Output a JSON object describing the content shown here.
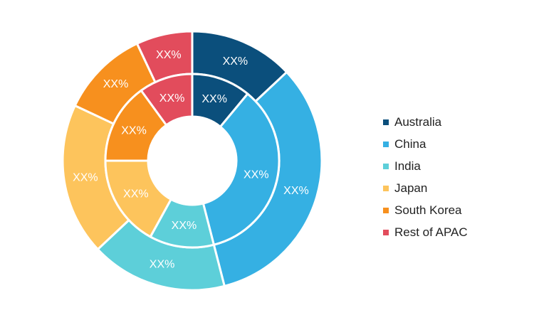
{
  "chart_data": {
    "type": "pie",
    "variant": "nested-donut",
    "categories": [
      "Australia",
      "China",
      "India",
      "Japan",
      "South Korea",
      "Rest of APAC"
    ],
    "colors": [
      "#0b4f7c",
      "#35b0e3",
      "#5dcfd9",
      "#fdc45c",
      "#f7901e",
      "#e24c5c"
    ],
    "series": [
      {
        "ring": "outer",
        "values": [
          13,
          33,
          17,
          19,
          11,
          7
        ],
        "labels": [
          "XX%",
          "XX%",
          "XX%",
          "XX%",
          "XX%",
          "XX%"
        ]
      },
      {
        "ring": "inner",
        "values": [
          11,
          35,
          12,
          17,
          15,
          10
        ],
        "labels": [
          "XX%",
          "XX%",
          "XX%",
          "XX%",
          "XX%",
          "XX%"
        ]
      }
    ],
    "legend_position": "right"
  },
  "legend": {
    "items": [
      {
        "label": "Australia",
        "color": "#0b4f7c"
      },
      {
        "label": "China",
        "color": "#35b0e3"
      },
      {
        "label": "India",
        "color": "#5dcfd9"
      },
      {
        "label": "Japan",
        "color": "#fdc45c"
      },
      {
        "label": "South Korea",
        "color": "#f7901e"
      },
      {
        "label": "Rest of APAC",
        "color": "#e24c5c"
      }
    ]
  }
}
